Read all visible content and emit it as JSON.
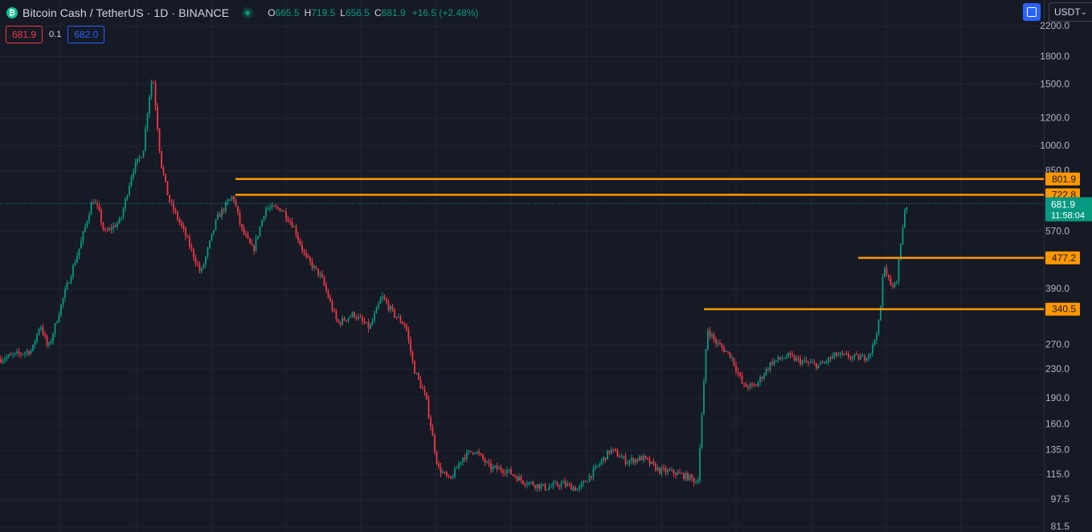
{
  "header": {
    "title": "Bitcoin Cash / TetherUS · 1D · BINANCE",
    "open_label": "O",
    "open": "665.5",
    "high_label": "H",
    "high": "719.5",
    "low_label": "L",
    "low": "656.5",
    "close_label": "C",
    "close": "681.9",
    "change": "+16.5 (+2.48%)"
  },
  "trade": {
    "sell_price": "681.9",
    "spread": "0.1",
    "buy_price": "682.0"
  },
  "toolbar": {
    "currency": "USDT"
  },
  "colors": {
    "background": "#161a25",
    "up": "#089981",
    "down": "#f23645",
    "hline": "#ff9800",
    "accent": "#2962ff"
  },
  "chart_data": {
    "type": "candlestick",
    "scale": "log",
    "ylim": [
      81.5,
      2200
    ],
    "y_ticks": [
      "2200.0",
      "1800.0",
      "1500.0",
      "1200.0",
      "1000.0",
      "850.0",
      "570.0",
      "390.0",
      "270.0",
      "230.0",
      "190.0",
      "160.0",
      "135.0",
      "115.0",
      "97.5",
      "81.5"
    ],
    "current_price": {
      "value": "681.9",
      "countdown": "11:58:04"
    },
    "horizontal_lines": [
      {
        "value": 801.9,
        "label": "801.9"
      },
      {
        "value": 722.8,
        "label": "722.8"
      },
      {
        "value": 477.2,
        "label": "477.2"
      },
      {
        "value": 340.5,
        "label": "340.5"
      }
    ],
    "price_path": [
      [
        0,
        245
      ],
      [
        40,
        260
      ],
      [
        50,
        310
      ],
      [
        60,
        262
      ],
      [
        80,
        375
      ],
      [
        100,
        520
      ],
      [
        115,
        700
      ],
      [
        122,
        660
      ],
      [
        130,
        560
      ],
      [
        150,
        610
      ],
      [
        165,
        850
      ],
      [
        178,
        960
      ],
      [
        185,
        1350
      ],
      [
        190,
        1600
      ],
      [
        200,
        900
      ],
      [
        210,
        700
      ],
      [
        230,
        560
      ],
      [
        250,
        430
      ],
      [
        270,
        620
      ],
      [
        290,
        720
      ],
      [
        300,
        580
      ],
      [
        315,
        500
      ],
      [
        330,
        660
      ],
      [
        350,
        660
      ],
      [
        365,
        590
      ],
      [
        380,
        480
      ],
      [
        400,
        420
      ],
      [
        420,
        310
      ],
      [
        440,
        330
      ],
      [
        460,
        300
      ],
      [
        475,
        370
      ],
      [
        490,
        330
      ],
      [
        505,
        305
      ],
      [
        515,
        230
      ],
      [
        530,
        190
      ],
      [
        545,
        120
      ],
      [
        560,
        110
      ],
      [
        575,
        128
      ],
      [
        590,
        135
      ],
      [
        610,
        120
      ],
      [
        630,
        118
      ],
      [
        650,
        110
      ],
      [
        680,
        105
      ],
      [
        700,
        108
      ],
      [
        720,
        104
      ],
      [
        740,
        118
      ],
      [
        760,
        135
      ],
      [
        780,
        125
      ],
      [
        800,
        128
      ],
      [
        820,
        118
      ],
      [
        840,
        116
      ],
      [
        860,
        112
      ],
      [
        868,
        108
      ],
      [
        875,
        190
      ],
      [
        880,
        300
      ],
      [
        890,
        275
      ],
      [
        910,
        250
      ],
      [
        925,
        205
      ],
      [
        940,
        205
      ],
      [
        960,
        240
      ],
      [
        980,
        250
      ],
      [
        1000,
        240
      ],
      [
        1020,
        235
      ],
      [
        1040,
        252
      ],
      [
        1060,
        248
      ],
      [
        1075,
        247
      ],
      [
        1085,
        260
      ],
      [
        1095,
        320
      ],
      [
        1100,
        465
      ],
      [
        1108,
        395
      ],
      [
        1115,
        400
      ],
      [
        1120,
        500
      ],
      [
        1126,
        660
      ],
      [
        1130,
        682
      ]
    ]
  }
}
